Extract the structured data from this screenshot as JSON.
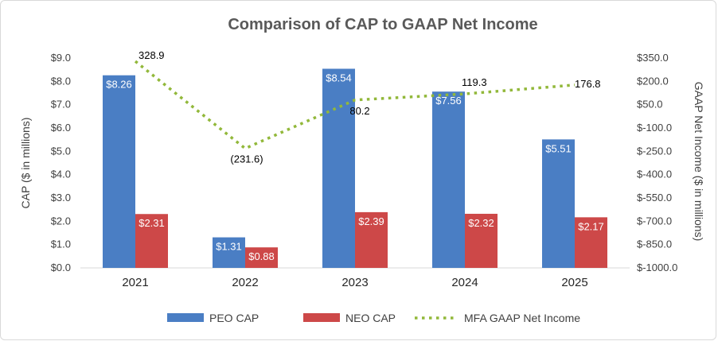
{
  "chart_data": {
    "type": "bar",
    "title": "Comparison of CAP to GAAP Net Income",
    "categories": [
      "2021",
      "2022",
      "2023",
      "2024",
      "2025"
    ],
    "y_left": {
      "label": "CAP ($ in millions)",
      "min": 0,
      "max": 9,
      "step": 1,
      "tick_labels": [
        "$0.0",
        "$1.0",
        "$2.0",
        "$3.0",
        "$4.0",
        "$5.0",
        "$6.0",
        "$7.0",
        "$8.0",
        "$9.0"
      ]
    },
    "y_right": {
      "label": "GAAP Net Income ($ in millions)",
      "min": -1000,
      "max": 350,
      "step": 150,
      "tick_labels": [
        "$-1000.0",
        "$-850.0",
        "$-700.0",
        "$-550.0",
        "$-400.0",
        "$-250.0",
        "$-100.0",
        "$50.0",
        "$200.0",
        "$350.0"
      ]
    },
    "series": [
      {
        "name": "PEO CAP",
        "type": "bar",
        "axis": "left",
        "color": "#4a7ec4",
        "values": [
          8.26,
          1.31,
          8.54,
          7.56,
          5.51
        ],
        "labels": [
          "$8.26",
          "$1.31",
          "$8.54",
          "$7.56",
          "$5.51"
        ]
      },
      {
        "name": "NEO CAP",
        "type": "bar",
        "axis": "left",
        "color": "#cd4848",
        "values": [
          2.31,
          0.88,
          2.39,
          2.32,
          2.17
        ],
        "labels": [
          "$2.31",
          "$0.88",
          "$2.39",
          "$2.32",
          "$2.17"
        ]
      },
      {
        "name": "MFA GAAP Net Income",
        "type": "line",
        "axis": "right",
        "color": "#92b83a",
        "style": "dotted",
        "values": [
          328.9,
          -231.6,
          80.2,
          119.3,
          176.8
        ],
        "labels": [
          "328.9",
          "(231.6)",
          "80.2",
          "119.3",
          "176.8"
        ]
      }
    ],
    "legend_position": "bottom",
    "grid": false
  }
}
